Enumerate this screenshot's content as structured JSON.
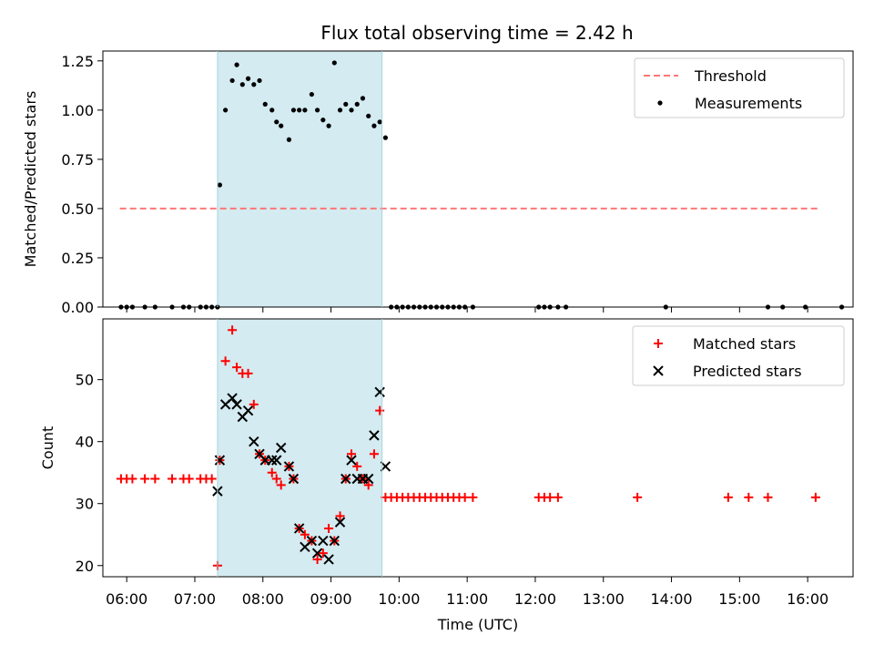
{
  "chart_data": [
    {
      "type": "scatter",
      "title": "Flux total observing time = 2.42 h",
      "xlabel": "",
      "ylabel": "Matched/Predicted stars",
      "xlim": [
        "05:39",
        "16:40"
      ],
      "ylim": [
        0,
        1.3
      ],
      "yticks": [
        0.0,
        0.25,
        0.5,
        0.75,
        1.0,
        1.25
      ],
      "ytick_labels": [
        "0.00",
        "0.25",
        "0.50",
        "0.75",
        "1.00",
        "1.25"
      ],
      "highlight": {
        "x_start": "07:20",
        "x_end": "09:45",
        "color": "#d3ebf1"
      },
      "legend": {
        "placement": "top-right"
      },
      "series": [
        {
          "name": "Threshold",
          "kind": "dashed-line",
          "color": "#ff7777",
          "x": [
            "05:54",
            "16:10"
          ],
          "y": [
            0.5,
            0.5
          ]
        },
        {
          "name": "Measurements",
          "kind": "dot",
          "color": "#000000",
          "x": [
            "05:55",
            "06:00",
            "06:05",
            "06:16",
            "06:25",
            "06:40",
            "06:50",
            "06:55",
            "07:05",
            "07:10",
            "07:15",
            "07:20",
            "07:22",
            "07:27",
            "07:33",
            "07:37",
            "07:42",
            "07:47",
            "07:52",
            "07:57",
            "08:02",
            "08:08",
            "08:12",
            "08:16",
            "08:23",
            "08:27",
            "08:32",
            "08:37",
            "08:43",
            "08:48",
            "08:53",
            "08:58",
            "09:03",
            "09:08",
            "09:13",
            "09:18",
            "09:23",
            "09:28",
            "09:33",
            "09:38",
            "09:43",
            "09:48",
            "09:53",
            "09:58",
            "10:03",
            "10:08",
            "10:13",
            "10:18",
            "10:23",
            "10:28",
            "10:33",
            "10:38",
            "10:43",
            "10:48",
            "10:53",
            "10:58",
            "11:05",
            "12:03",
            "12:08",
            "12:13",
            "12:20",
            "12:27",
            "13:55",
            "15:25",
            "15:38",
            "15:58",
            "16:30"
          ],
          "y": [
            0,
            0,
            0,
            0,
            0,
            0,
            0,
            0,
            0,
            0,
            0,
            0,
            0.62,
            1.0,
            1.15,
            1.23,
            1.13,
            1.16,
            1.13,
            1.15,
            1.03,
            1.0,
            0.94,
            0.92,
            0.85,
            1.0,
            1.0,
            1.0,
            1.08,
            1.0,
            0.95,
            0.92,
            1.24,
            1.0,
            1.03,
            1.0,
            1.03,
            1.06,
            0.97,
            0.92,
            0.94,
            0.86,
            0,
            0,
            0,
            0,
            0,
            0,
            0,
            0,
            0,
            0,
            0,
            0,
            0,
            0,
            0,
            0,
            0,
            0,
            0,
            0,
            0,
            0,
            0,
            0,
            0
          ]
        }
      ]
    },
    {
      "type": "scatter",
      "title": "",
      "xlabel": "Time (UTC)",
      "ylabel": "Count",
      "xlim": [
        "05:39",
        "16:40"
      ],
      "ylim": [
        18.2,
        59.8
      ],
      "xticks": [
        "06:00",
        "07:00",
        "08:00",
        "09:00",
        "10:00",
        "11:00",
        "12:00",
        "13:00",
        "14:00",
        "15:00",
        "16:00"
      ],
      "yticks": [
        20,
        30,
        40,
        50
      ],
      "ytick_labels": [
        "20",
        "30",
        "40",
        "50"
      ],
      "highlight": {
        "x_start": "07:20",
        "x_end": "09:45",
        "color": "#d3ebf1"
      },
      "legend": {
        "placement": "top-right"
      },
      "series": [
        {
          "name": "Matched stars",
          "kind": "plus",
          "color": "#ff0000",
          "x": [
            "05:55",
            "06:00",
            "06:05",
            "06:16",
            "06:25",
            "06:40",
            "06:50",
            "06:55",
            "07:05",
            "07:10",
            "07:15",
            "07:20",
            "07:22",
            "07:27",
            "07:33",
            "07:37",
            "07:42",
            "07:47",
            "07:52",
            "07:57",
            "08:02",
            "08:08",
            "08:12",
            "08:16",
            "08:23",
            "08:27",
            "08:32",
            "08:37",
            "08:43",
            "08:48",
            "08:53",
            "08:58",
            "09:03",
            "09:08",
            "09:13",
            "09:18",
            "09:23",
            "09:28",
            "09:33",
            "09:38",
            "09:43",
            "09:48",
            "09:53",
            "09:58",
            "10:03",
            "10:08",
            "10:13",
            "10:18",
            "10:23",
            "10:28",
            "10:33",
            "10:38",
            "10:43",
            "10:48",
            "10:53",
            "10:58",
            "11:05",
            "12:03",
            "12:08",
            "12:13",
            "12:20",
            "13:30",
            "14:50",
            "15:08",
            "15:25",
            "16:07"
          ],
          "y": [
            34,
            34,
            34,
            34,
            34,
            34,
            34,
            34,
            34,
            34,
            34,
            20,
            37,
            53,
            58,
            52,
            51,
            51,
            46,
            38,
            37,
            35,
            34,
            33,
            36,
            34,
            26,
            25,
            24,
            21,
            22,
            26,
            24,
            28,
            34,
            38,
            36,
            34,
            33,
            38,
            45,
            31,
            31,
            31,
            31,
            31,
            31,
            31,
            31,
            31,
            31,
            31,
            31,
            31,
            31,
            31,
            31,
            31,
            31,
            31,
            31,
            31,
            31,
            31,
            31,
            31
          ]
        },
        {
          "name": "Predicted stars",
          "kind": "x",
          "color": "#000000",
          "x": [
            "07:20",
            "07:22",
            "07:27",
            "07:33",
            "07:37",
            "07:42",
            "07:47",
            "07:52",
            "07:57",
            "08:02",
            "08:08",
            "08:12",
            "08:16",
            "08:23",
            "08:27",
            "08:32",
            "08:37",
            "08:43",
            "08:48",
            "08:53",
            "08:58",
            "09:03",
            "09:08",
            "09:13",
            "09:18",
            "09:23",
            "09:28",
            "09:33",
            "09:38",
            "09:43",
            "09:48"
          ],
          "y": [
            32,
            37,
            46,
            47,
            46,
            44,
            45,
            40,
            38,
            37,
            37,
            37,
            39,
            36,
            34,
            26,
            23,
            24,
            22,
            24,
            21,
            24,
            27,
            34,
            37,
            34,
            34,
            34,
            41,
            48,
            36
          ]
        }
      ]
    }
  ]
}
